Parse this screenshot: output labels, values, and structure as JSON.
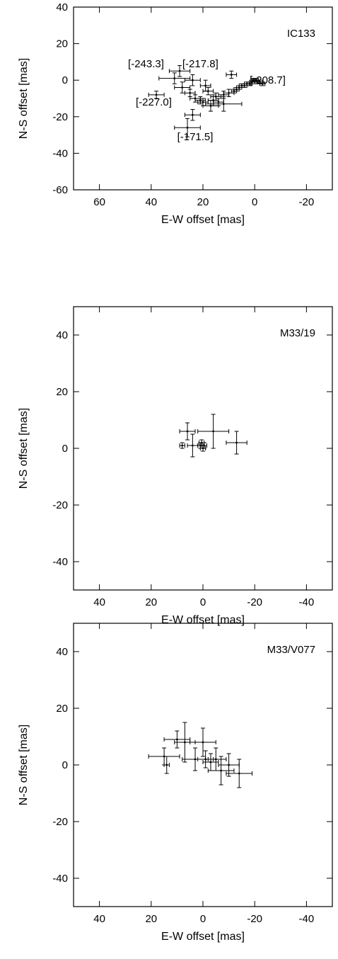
{
  "chart_data": [
    {
      "type": "scatter",
      "panel_label": "IC133",
      "xlabel": "E-W offset [mas]",
      "ylabel": "N-S offset [mas]",
      "xlim": [
        70,
        -30
      ],
      "ylim": [
        -60,
        40
      ],
      "xticks": [
        60,
        40,
        20,
        0,
        -20
      ],
      "yticks": [
        -60,
        -40,
        -20,
        0,
        20,
        40
      ],
      "grid": false,
      "points": [
        {
          "x": 38,
          "y": -8,
          "ex": 3,
          "ey": 2
        },
        {
          "x": 29,
          "y": 5,
          "ex": 4,
          "ey": 3
        },
        {
          "x": 31,
          "y": 1,
          "ex": 6,
          "ey": 3
        },
        {
          "x": 28,
          "y": -4,
          "ex": 3,
          "ey": 3
        },
        {
          "x": 26,
          "y": -26,
          "ex": 5,
          "ey": 5
        },
        {
          "x": 25,
          "y": -7,
          "ex": 2,
          "ey": 2
        },
        {
          "x": 24,
          "y": -19,
          "ex": 3,
          "ey": 3
        },
        {
          "x": 24,
          "y": 0,
          "ex": 3,
          "ey": 3
        },
        {
          "x": 23,
          "y": -10,
          "ex": 2,
          "ey": 2
        },
        {
          "x": 21,
          "y": -11,
          "ex": 2,
          "ey": 2
        },
        {
          "x": 20,
          "y": -12,
          "ex": 2,
          "ey": 2
        },
        {
          "x": 19,
          "y": -3,
          "ex": 2,
          "ey": 3
        },
        {
          "x": 18,
          "y": -6,
          "ex": 2,
          "ey": 2
        },
        {
          "x": 17,
          "y": -14,
          "ex": 3,
          "ey": 3
        },
        {
          "x": 16,
          "y": -11,
          "ex": 2,
          "ey": 3
        },
        {
          "x": 15,
          "y": -9,
          "ex": 2,
          "ey": 2
        },
        {
          "x": 14,
          "y": -12,
          "ex": 2,
          "ey": 2
        },
        {
          "x": 12,
          "y": -13,
          "ex": 7,
          "ey": 4
        },
        {
          "x": 12,
          "y": -8,
          "ex": 2,
          "ey": 2
        },
        {
          "x": 10,
          "y": -7,
          "ex": 2,
          "ey": 2
        },
        {
          "x": 9,
          "y": 3,
          "ex": 2,
          "ey": 2
        },
        {
          "x": 8,
          "y": -6,
          "ex": 1,
          "ey": 1
        },
        {
          "x": 7,
          "y": -5,
          "ex": 1,
          "ey": 1
        },
        {
          "x": 6,
          "y": -4,
          "ex": 1,
          "ey": 1
        },
        {
          "x": 5,
          "y": -3,
          "ex": 1,
          "ey": 1
        },
        {
          "x": 4,
          "y": -3,
          "ex": 1,
          "ey": 1
        },
        {
          "x": 3,
          "y": -2,
          "ex": 1,
          "ey": 1
        },
        {
          "x": 2,
          "y": -2,
          "ex": 1,
          "ey": 1
        },
        {
          "x": 1,
          "y": -1,
          "ex": 1,
          "ey": 1
        },
        {
          "x": 0.5,
          "y": 0,
          "ex": 1,
          "ey": 1
        },
        {
          "x": 0,
          "y": 0,
          "ex": 1,
          "ey": 1
        },
        {
          "x": -0.5,
          "y": 0,
          "ex": 1,
          "ey": 1
        },
        {
          "x": -1,
          "y": -1,
          "ex": 1,
          "ey": 1
        },
        {
          "x": -2,
          "y": -1,
          "ex": 1,
          "ey": 1
        },
        {
          "x": -3,
          "y": -2,
          "ex": 1,
          "ey": 1
        }
      ],
      "annotations": [
        {
          "text": "[-243.3]",
          "x": 42,
          "y": 9
        },
        {
          "text": "[-217.8]",
          "x": 21,
          "y": 9
        },
        {
          "text": "[-208.7]",
          "x": -5,
          "y": 0
        },
        {
          "text": "[-227.0]",
          "x": 39,
          "y": -12
        },
        {
          "text": "[-171.5]",
          "x": 23,
          "y": -31
        }
      ]
    },
    {
      "type": "scatter",
      "panel_label": "M33/19",
      "xlabel": "E-W offset [mas]",
      "ylabel": "N-S offset [mas]",
      "xlim": [
        50,
        -50
      ],
      "ylim": [
        -50,
        50
      ],
      "xticks": [
        40,
        20,
        0,
        -20,
        -40
      ],
      "yticks": [
        -40,
        -20,
        0,
        20,
        40
      ],
      "grid": false,
      "points": [
        {
          "x": 8,
          "y": 1,
          "ex": 1,
          "ey": 1
        },
        {
          "x": 6,
          "y": 6,
          "ex": 3,
          "ey": 3
        },
        {
          "x": 4,
          "y": 1,
          "ex": 2,
          "ey": 4
        },
        {
          "x": 1,
          "y": 1,
          "ex": 1,
          "ey": 1
        },
        {
          "x": 0.5,
          "y": 2,
          "ex": 1,
          "ey": 1
        },
        {
          "x": 0,
          "y": 0,
          "ex": 1,
          "ey": 1
        },
        {
          "x": -0.5,
          "y": 1,
          "ex": 1,
          "ey": 1
        },
        {
          "x": -4,
          "y": 6,
          "ex": 6,
          "ey": 6
        },
        {
          "x": -13,
          "y": 2,
          "ex": 4,
          "ey": 4
        }
      ]
    },
    {
      "type": "scatter",
      "panel_label": "M33/V077",
      "xlabel": "E-W offset [mas]",
      "ylabel": "N-S offset [mas]",
      "xlim": [
        50,
        -50
      ],
      "ylim": [
        -50,
        50
      ],
      "xticks": [
        40,
        20,
        0,
        -20,
        -40
      ],
      "yticks": [
        -40,
        -20,
        0,
        20,
        40
      ],
      "grid": false,
      "points": [
        {
          "x": 15,
          "y": 3,
          "ex": 6,
          "ey": 3
        },
        {
          "x": 14,
          "y": 0,
          "ex": 1,
          "ey": 3
        },
        {
          "x": 10,
          "y": 9,
          "ex": 5,
          "ey": 3
        },
        {
          "x": 7,
          "y": 8,
          "ex": 4,
          "ey": 7
        },
        {
          "x": 3,
          "y": 2,
          "ex": 5,
          "ey": 4
        },
        {
          "x": 0,
          "y": 8,
          "ex": 5,
          "ey": 5
        },
        {
          "x": -1,
          "y": 2,
          "ex": 3,
          "ey": 3
        },
        {
          "x": -3,
          "y": 1,
          "ex": 3,
          "ey": 3
        },
        {
          "x": -5,
          "y": 2,
          "ex": 4,
          "ey": 4
        },
        {
          "x": -7,
          "y": -2,
          "ex": 5,
          "ey": 5
        },
        {
          "x": -10,
          "y": 0,
          "ex": 4,
          "ey": 4
        },
        {
          "x": -14,
          "y": -3,
          "ex": 5,
          "ey": 5
        }
      ]
    }
  ]
}
